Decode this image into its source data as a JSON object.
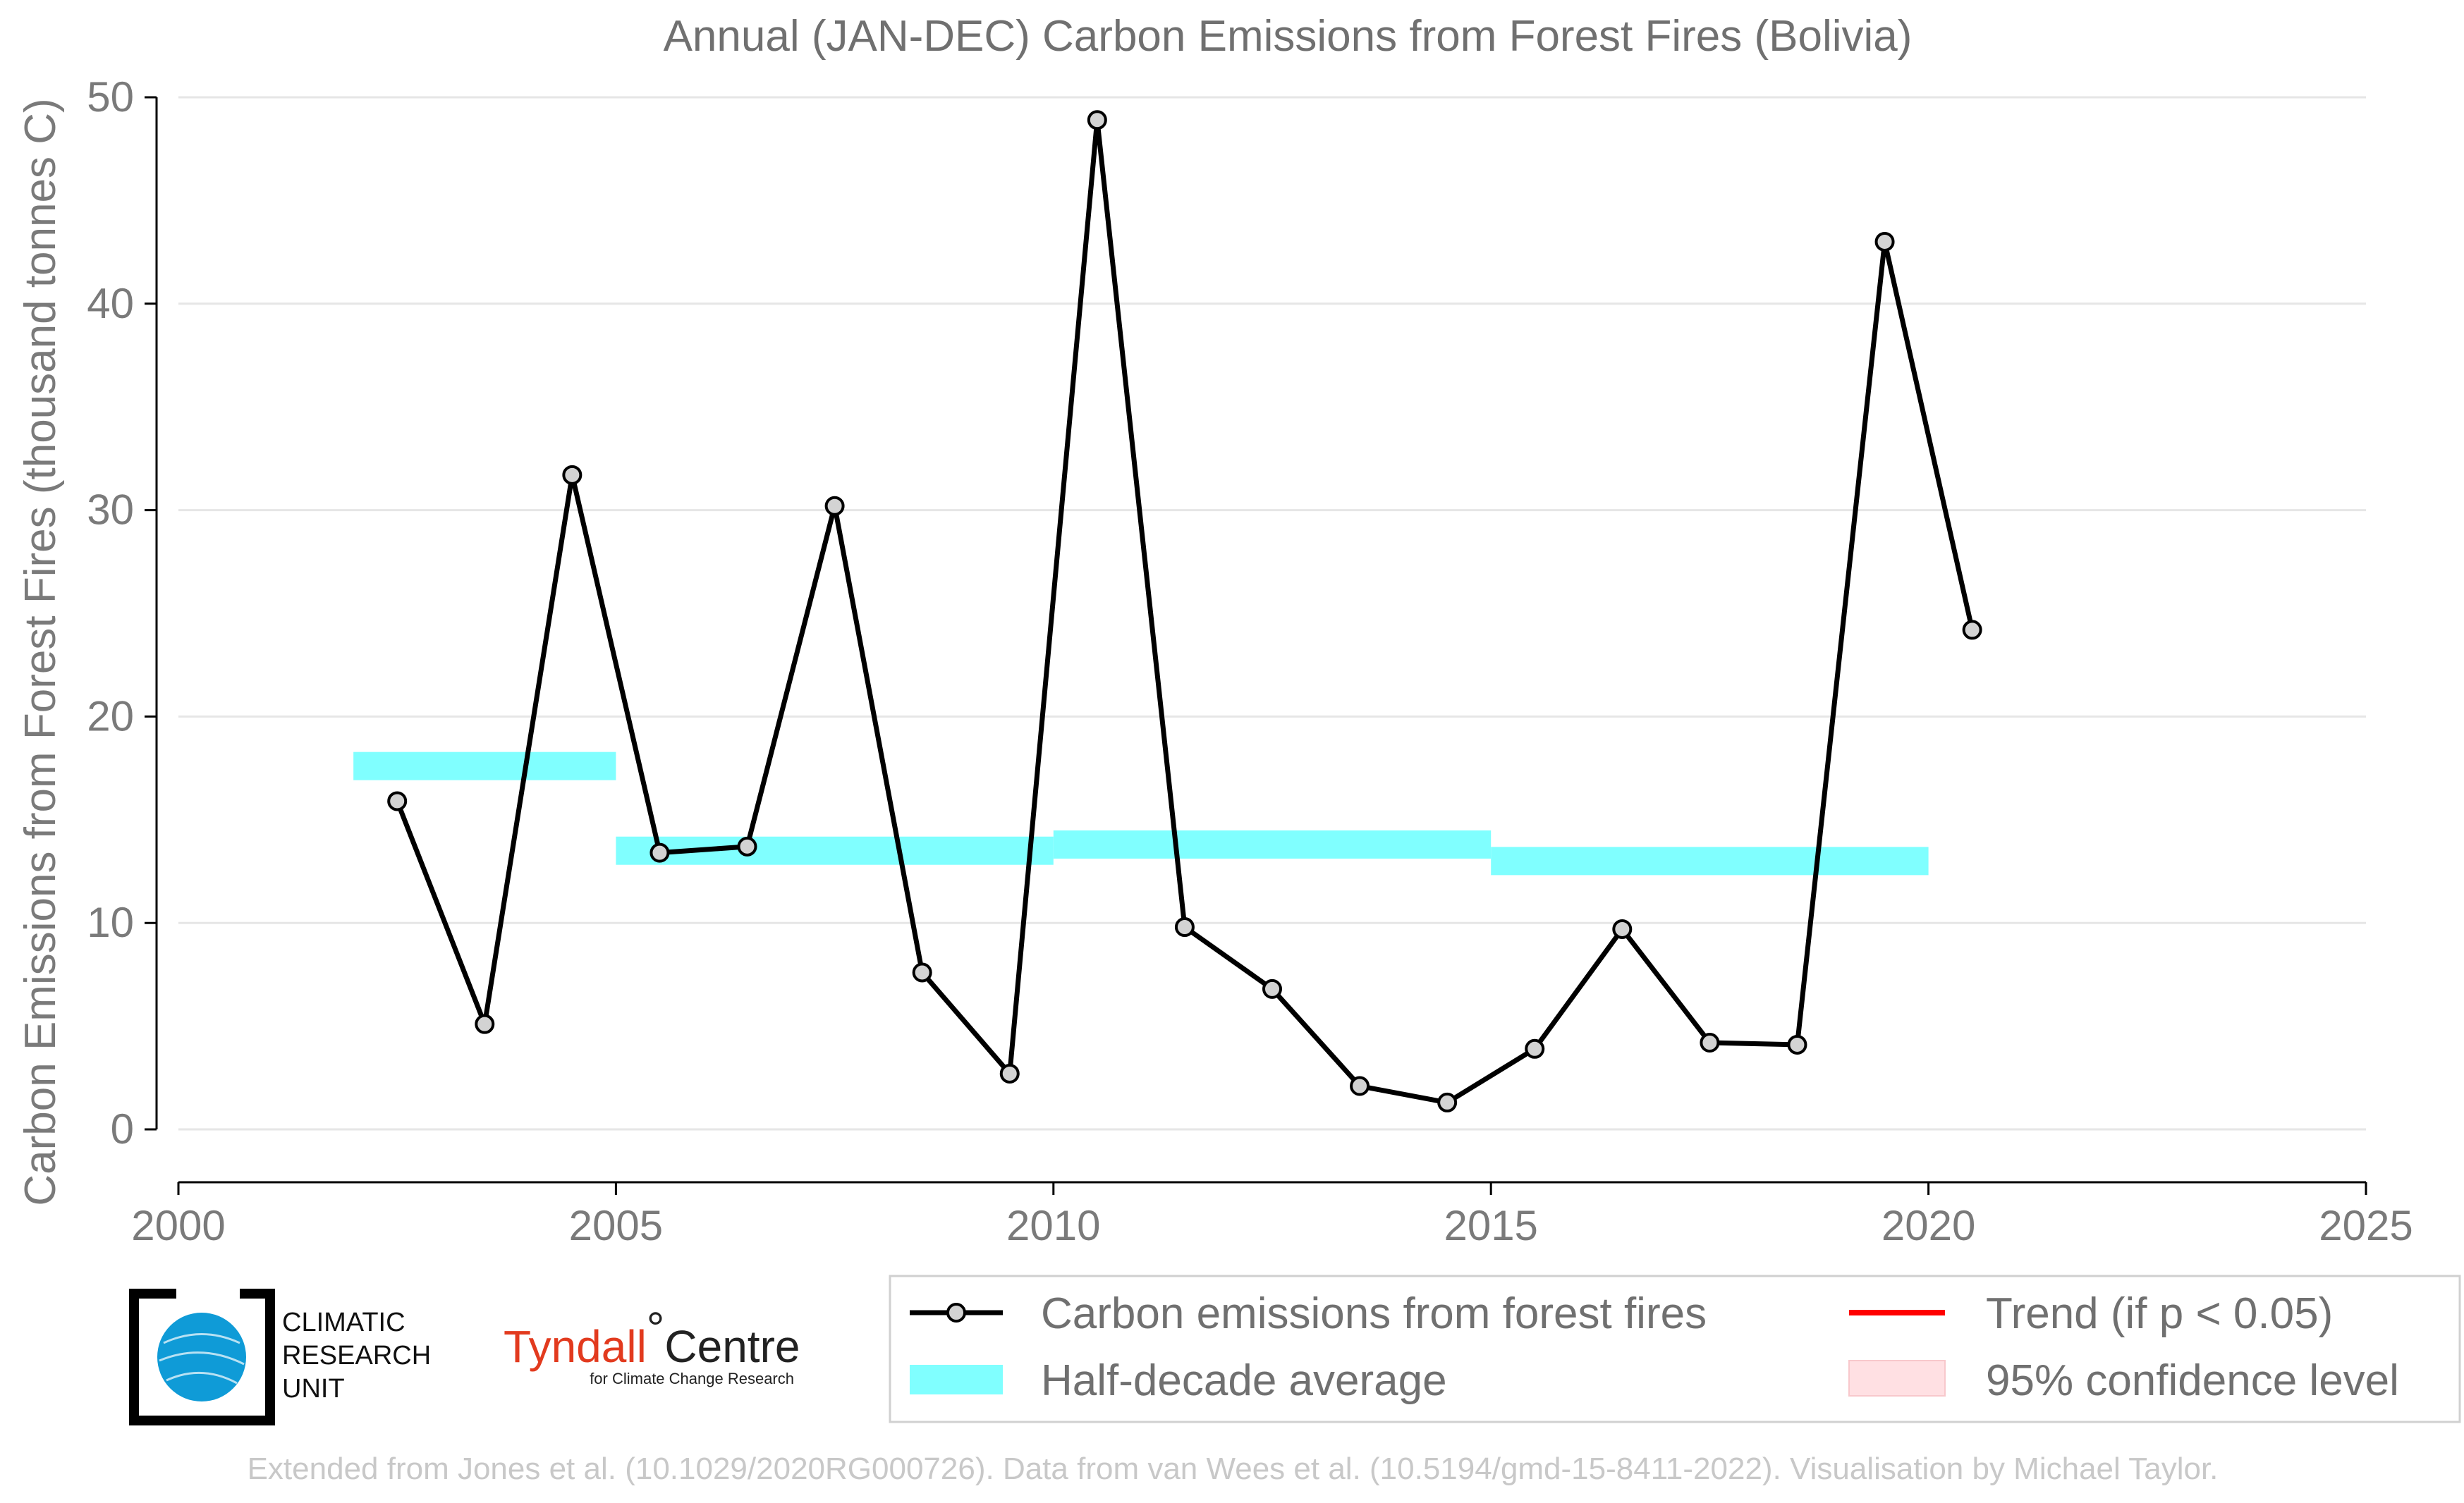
{
  "chart_data": {
    "type": "line",
    "title": "Annual (JAN-DEC) Carbon Emissions from Forest Fires (Bolivia)",
    "xlabel": "",
    "ylabel": "Carbon Emissions from Forest Fires (thousand tonnes C)",
    "xlim": [
      2000,
      2025
    ],
    "ylim": [
      0,
      50
    ],
    "xticks": [
      "2000",
      "2005",
      "2010",
      "2015",
      "2020",
      "2025"
    ],
    "yticks": [
      "0",
      "10",
      "20",
      "30",
      "40",
      "50"
    ],
    "grid": "horizontal",
    "series": [
      {
        "name": "Carbon emissions from forest fires",
        "color": "#000000",
        "marker_fill": "#d3d3d3",
        "x": [
          2002.5,
          2003.5,
          2004.5,
          2005.5,
          2006.5,
          2007.5,
          2008.5,
          2009.5,
          2010.5,
          2011.5,
          2012.5,
          2013.5,
          2014.5,
          2015.5,
          2016.5,
          2017.5,
          2018.5,
          2019.5,
          2020.5
        ],
        "values": [
          15.9,
          5.1,
          31.7,
          13.4,
          13.7,
          30.2,
          7.6,
          2.7,
          48.9,
          9.8,
          6.8,
          2.1,
          1.3,
          3.9,
          9.7,
          4.2,
          4.1,
          43.0,
          24.2
        ]
      }
    ],
    "half_decade_average": {
      "name": "Half-decade average",
      "color": "#80ffff",
      "segments": [
        {
          "x_start": 2002,
          "x_end": 2005,
          "value": 17.6
        },
        {
          "x_start": 2005,
          "x_end": 2010,
          "value": 13.5
        },
        {
          "x_start": 2010,
          "x_end": 2015,
          "value": 13.8
        },
        {
          "x_start": 2015,
          "x_end": 2020,
          "value": 13.0
        }
      ]
    },
    "legend": {
      "placement": "bottom-right",
      "items": [
        {
          "label": "Carbon emissions from forest fires",
          "kind": "line-marker",
          "color": "#000000"
        },
        {
          "label": "Trend (if p < 0.05)",
          "kind": "line",
          "color": "#ff0000"
        },
        {
          "label": "Half-decade average",
          "kind": "band",
          "color": "#80ffff"
        },
        {
          "label": "95% confidence level",
          "kind": "band",
          "color": "#ffe0e3"
        }
      ]
    }
  },
  "logos": {
    "cru": {
      "line1": "CLIMATIC",
      "line2": "RESEARCH",
      "line3": "UNIT",
      "icon": "globe-icon"
    },
    "tyndall": {
      "name": "Tyndall",
      "degree": "°",
      "centre": "Centre",
      "sub": "for Climate Change Research"
    }
  },
  "footer": "Extended from Jones et al. (10.1029/2020RG000726). Data from van Wees et al. (10.5194/gmd-15-8411-2022). Visualisation by Michael Taylor."
}
